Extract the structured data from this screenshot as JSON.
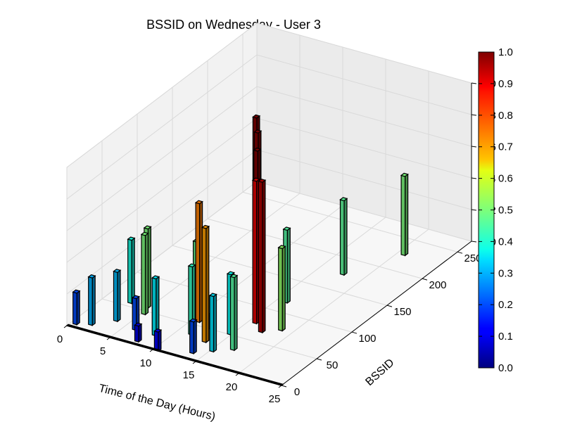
{
  "chart_data": {
    "type": "bar3d",
    "title": "BSSID on Wednesday - User 3",
    "xlabel": "Time of the Day (Hours)",
    "ylabel": "BSSID",
    "xlim": [
      0,
      25
    ],
    "ylim": [
      0,
      270
    ],
    "zlim": [
      0,
      1.0
    ],
    "x_ticks": [
      "0",
      "5",
      "10",
      "15",
      "20",
      "25"
    ],
    "y_ticks": [
      "0",
      "50",
      "100",
      "150",
      "200",
      "250"
    ],
    "z_ticks": [
      "0.0",
      "0.2",
      "0.4",
      "0.6",
      "0.8",
      "1.0"
    ],
    "grid": true,
    "colorbar": {
      "colormap": "jet",
      "range": [
        0.0,
        1.0
      ],
      "ticks": [
        "0.0",
        "0.1",
        "0.2",
        "0.3",
        "0.4",
        "0.5",
        "0.6",
        "0.7",
        "0.8",
        "0.9",
        "1.0"
      ]
    },
    "bars": [
      {
        "x": 0.3,
        "y": 5,
        "z": 0.2
      },
      {
        "x": 1.7,
        "y": 10,
        "z": 0.3
      },
      {
        "x": 2.6,
        "y": 55,
        "z": 0.4
      },
      {
        "x": 3.4,
        "y": 25,
        "z": 0.31
      },
      {
        "x": 4.5,
        "y": 55,
        "z": 0.5
      },
      {
        "x": 5.0,
        "y": 45,
        "z": 0.5
      },
      {
        "x": 6.0,
        "y": 20,
        "z": 0.2
      },
      {
        "x": 7.5,
        "y": 5,
        "z": 0.1
      },
      {
        "x": 7.9,
        "y": 25,
        "z": 0.33
      },
      {
        "x": 8.3,
        "y": 20,
        "z": 0.36
      },
      {
        "x": 9.8,
        "y": 60,
        "z": 0.48
      },
      {
        "x": 10.5,
        "y": 55,
        "z": 0.75
      },
      {
        "x": 10.2,
        "y": 140,
        "z": 1.0
      },
      {
        "x": 10.2,
        "y": 0,
        "z": 0.12
      },
      {
        "x": 11.3,
        "y": 35,
        "z": 0.43
      },
      {
        "x": 12.0,
        "y": 120,
        "z": 1.0
      },
      {
        "x": 13.3,
        "y": 30,
        "z": 0.72
      },
      {
        "x": 13.5,
        "y": 10,
        "z": 0.2
      },
      {
        "x": 14.6,
        "y": 50,
        "z": 0.38
      },
      {
        "x": 15.0,
        "y": 20,
        "z": 0.35
      },
      {
        "x": 15.8,
        "y": 115,
        "z": 0.46
      },
      {
        "x": 16.6,
        "y": 30,
        "z": 0.46
      },
      {
        "x": 17.0,
        "y": 65,
        "z": 0.95
      },
      {
        "x": 17.5,
        "y": 175,
        "z": 0.47
      },
      {
        "x": 18.5,
        "y": 75,
        "z": 0.52
      },
      {
        "x": 20.5,
        "y": 225,
        "z": 0.5
      },
      {
        "x": 14.0,
        "y": 95,
        "z": 1.0
      },
      {
        "x": 15.5,
        "y": 75,
        "z": 0.9
      },
      {
        "x": 12.2,
        "y": 50,
        "z": 0.08
      }
    ]
  }
}
